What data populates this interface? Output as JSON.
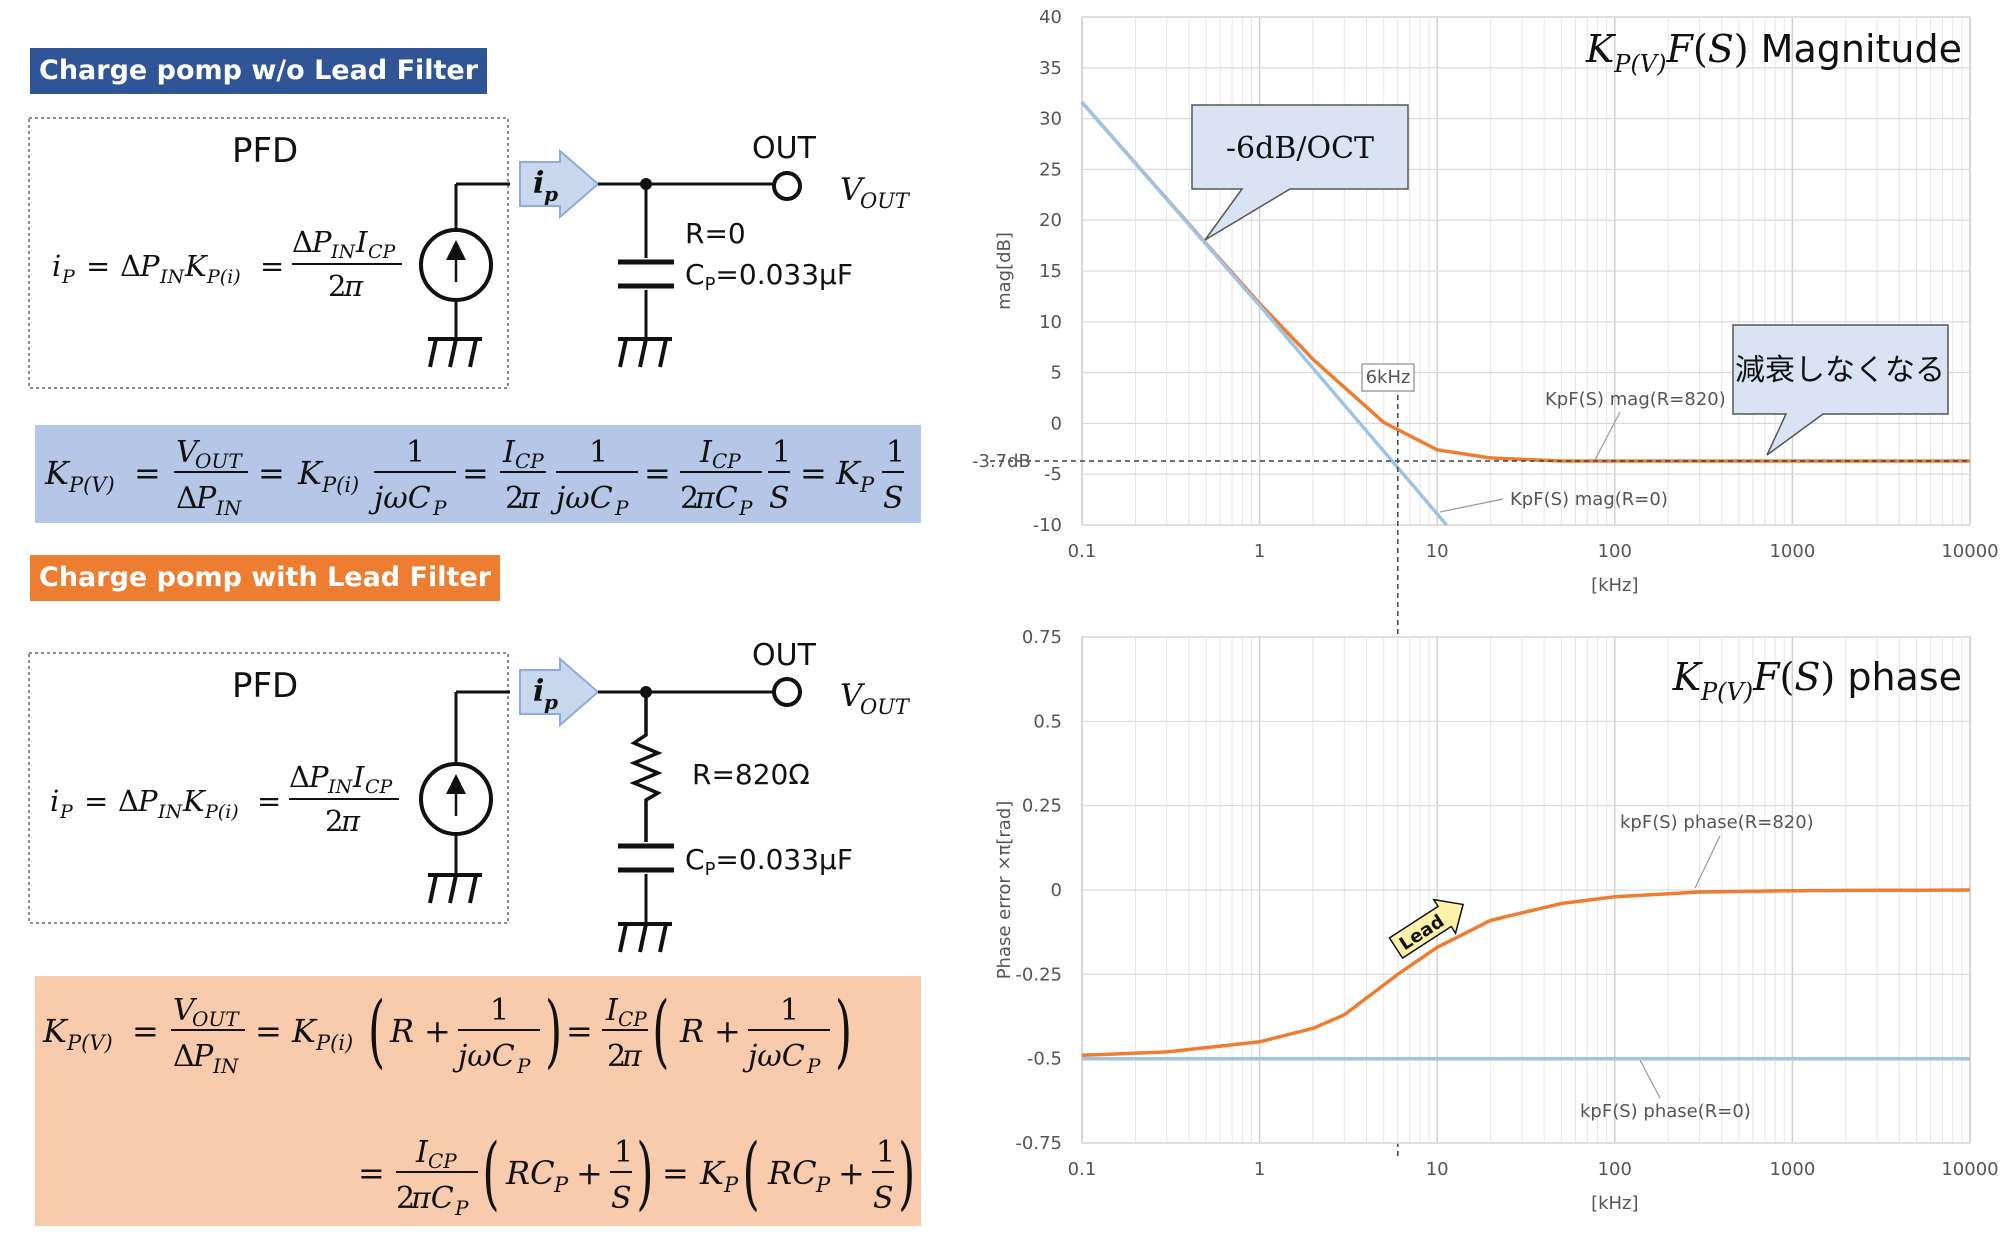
{
  "banners": {
    "without_lead": "Charge pomp w/o Lead Filter",
    "with_lead": "Charge pomp with Lead Filter"
  },
  "circuit_top": {
    "pfd": "PFD",
    "out": "OUT",
    "r": "R=0",
    "cp": "C",
    "cp_sub": "P",
    "cp_val": "=0.033μF"
  },
  "circuit_bottom": {
    "pfd": "PFD",
    "out": "OUT",
    "r": "R=820Ω",
    "cp": "C",
    "cp_sub": "P",
    "cp_val": "=0.033μF"
  },
  "colors": {
    "blue_banner": "#2f5597",
    "orange_banner": "#ed7d31",
    "formula_blue_bg": "#b4c7e7",
    "formula_orange_bg": "#f8cbad",
    "series_orange": "#ed7d31",
    "series_blue": "#9dc3e6"
  },
  "chart_data": [
    {
      "type": "line",
      "title": "K_P(V) F(S) Magnitude",
      "title_plain": "Magnitude",
      "xlabel": "[kHz]",
      "ylabel": "mag[dB]",
      "x_scale": "log",
      "xlim": [
        0.1,
        10000
      ],
      "ylim": [
        -10,
        40
      ],
      "x_ticks": [
        "0.1",
        "1",
        "10",
        "100",
        "1000",
        "10000"
      ],
      "y_ticks": [
        "40",
        "35",
        "30",
        "25",
        "20",
        "15",
        "10",
        "5",
        "0",
        "-5",
        "-10"
      ],
      "grid": true,
      "series": [
        {
          "name": "KpF(S) mag(R=820)",
          "x": [
            0.1,
            0.2,
            0.5,
            1,
            2,
            5,
            10,
            20,
            50,
            100,
            1000,
            10000
          ],
          "y": [
            31.6,
            25.6,
            17.7,
            11.8,
            6.3,
            0.1,
            -2.6,
            -3.4,
            -3.7,
            -3.7,
            -3.7,
            -3.7
          ]
        },
        {
          "name": "KpF(S) mag(R=0)",
          "x": [
            0.1,
            1,
            11.3
          ],
          "y": [
            31.6,
            11.6,
            -10
          ]
        }
      ],
      "annotations": {
        "slope": "-6dB/OCT",
        "flat": "減衰しなくなる",
        "freq": "6kHz",
        "level": "-3.7dB"
      }
    },
    {
      "type": "line",
      "title": "K_P(V) F(S) phase",
      "title_plain": "phase",
      "xlabel": "[kHz]",
      "ylabel": "Phase error ×π[rad]",
      "x_scale": "log",
      "xlim": [
        0.1,
        10000
      ],
      "ylim": [
        -0.75,
        0.75
      ],
      "x_ticks": [
        "0.1",
        "1",
        "10",
        "100",
        "1000",
        "10000"
      ],
      "y_ticks": [
        "0.75",
        "0.5",
        "0.25",
        "0",
        "-0.25",
        "-0.5",
        "-0.75"
      ],
      "grid": true,
      "series": [
        {
          "name": "kpF(S) phase(R=820)",
          "x": [
            0.1,
            0.3,
            1,
            2,
            3,
            6,
            10,
            20,
            50,
            100,
            300,
            1000,
            10000
          ],
          "y": [
            -0.49,
            -0.48,
            -0.45,
            -0.41,
            -0.37,
            -0.25,
            -0.17,
            -0.09,
            -0.04,
            -0.02,
            -0.006,
            -0.002,
            0
          ]
        },
        {
          "name": "kpF(S) phase(R=0)",
          "x": [
            0.1,
            10000
          ],
          "y": [
            -0.5,
            -0.5
          ]
        }
      ],
      "annotations": {
        "lead": "Lead"
      }
    }
  ]
}
